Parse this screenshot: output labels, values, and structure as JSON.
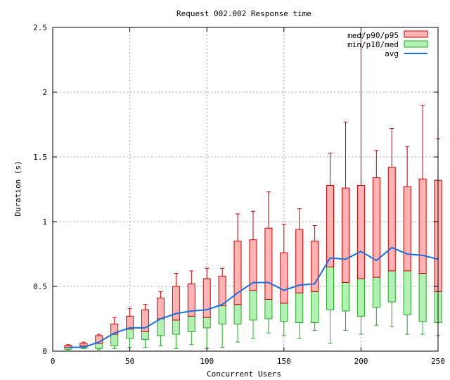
{
  "chart_data": {
    "type": "box",
    "title": "Request 002.002 Response time",
    "xlabel": "Concurrent Users",
    "ylabel": "Duration (s)",
    "xlim": [
      0,
      250
    ],
    "ylim": [
      0,
      2.5
    ],
    "xticks": [
      0,
      50,
      100,
      150,
      200,
      250
    ],
    "yticks": [
      0,
      0.5,
      1,
      1.5,
      2,
      2.5
    ],
    "ytick_labels": [
      "0",
      "0.5",
      "1",
      "1.5",
      "2",
      "2.5"
    ],
    "grid": true,
    "legend_position": "top-right",
    "legend": [
      {
        "label": "med/p90/p95",
        "color": "#ffb3b3",
        "stroke": "#cc0000"
      },
      {
        "label": "min/p10/med",
        "color": "#b3f0b3",
        "stroke": "#22aa22"
      },
      {
        "label": "avg",
        "color": "#1a6fe0"
      }
    ],
    "series": [
      {
        "x": 10,
        "min": 0.01,
        "p10": 0.015,
        "med": 0.03,
        "p90": 0.045,
        "p95": 0.05,
        "avg": 0.03
      },
      {
        "x": 20,
        "min": 0.02,
        "p10": 0.025,
        "med": 0.04,
        "p90": 0.06,
        "p95": 0.07,
        "avg": 0.03
      },
      {
        "x": 30,
        "min": 0.01,
        "p10": 0.02,
        "med": 0.06,
        "p90": 0.12,
        "p95": 0.13,
        "avg": 0.07
      },
      {
        "x": 40,
        "min": 0.02,
        "p10": 0.04,
        "med": 0.13,
        "p90": 0.21,
        "p95": 0.26,
        "avg": 0.14
      },
      {
        "x": 50,
        "min": 0.03,
        "p10": 0.1,
        "med": 0.17,
        "p90": 0.27,
        "p95": 0.33,
        "avg": 0.18
      },
      {
        "x": 60,
        "min": 0.03,
        "p10": 0.09,
        "med": 0.15,
        "p90": 0.32,
        "p95": 0.36,
        "avg": 0.18
      },
      {
        "x": 70,
        "min": 0.04,
        "p10": 0.12,
        "med": 0.25,
        "p90": 0.41,
        "p95": 0.46,
        "avg": 0.25
      },
      {
        "x": 80,
        "min": 0.02,
        "p10": 0.13,
        "med": 0.24,
        "p90": 0.5,
        "p95": 0.6,
        "avg": 0.29
      },
      {
        "x": 90,
        "min": 0.05,
        "p10": 0.15,
        "med": 0.27,
        "p90": 0.52,
        "p95": 0.62,
        "avg": 0.31
      },
      {
        "x": 100,
        "min": 0.02,
        "p10": 0.18,
        "med": 0.26,
        "p90": 0.56,
        "p95": 0.64,
        "avg": 0.32
      },
      {
        "x": 110,
        "min": 0.03,
        "p10": 0.21,
        "med": 0.35,
        "p90": 0.58,
        "p95": 0.64,
        "avg": 0.36
      },
      {
        "x": 120,
        "min": 0.07,
        "p10": 0.21,
        "med": 0.36,
        "p90": 0.85,
        "p95": 1.06,
        "avg": 0.45
      },
      {
        "x": 130,
        "min": 0.1,
        "p10": 0.24,
        "med": 0.47,
        "p90": 0.86,
        "p95": 1.08,
        "avg": 0.53
      },
      {
        "x": 140,
        "min": 0.14,
        "p10": 0.25,
        "med": 0.4,
        "p90": 0.95,
        "p95": 1.23,
        "avg": 0.53
      },
      {
        "x": 150,
        "min": 0.12,
        "p10": 0.23,
        "med": 0.37,
        "p90": 0.76,
        "p95": 0.98,
        "avg": 0.47
      },
      {
        "x": 160,
        "min": 0.1,
        "p10": 0.22,
        "med": 0.45,
        "p90": 0.94,
        "p95": 1.1,
        "avg": 0.51
      },
      {
        "x": 170,
        "min": 0.16,
        "p10": 0.22,
        "med": 0.46,
        "p90": 0.85,
        "p95": 0.97,
        "avg": 0.52
      },
      {
        "x": 180,
        "min": 0.06,
        "p10": 0.32,
        "med": 0.65,
        "p90": 1.28,
        "p95": 1.53,
        "avg": 0.72
      },
      {
        "x": 190,
        "min": 0.16,
        "p10": 0.31,
        "med": 0.53,
        "p90": 1.26,
        "p95": 1.77,
        "avg": 0.71
      },
      {
        "x": 200,
        "min": 0.13,
        "p10": 0.27,
        "med": 0.56,
        "p90": 1.28,
        "p95": 2.45,
        "avg": 0.77
      },
      {
        "x": 210,
        "min": 0.2,
        "p10": 0.34,
        "med": 0.57,
        "p90": 1.34,
        "p95": 1.55,
        "avg": 0.7
      },
      {
        "x": 220,
        "min": 0.19,
        "p10": 0.38,
        "med": 0.62,
        "p90": 1.42,
        "p95": 1.72,
        "avg": 0.8
      },
      {
        "x": 230,
        "min": 0.13,
        "p10": 0.28,
        "med": 0.62,
        "p90": 1.27,
        "p95": 1.58,
        "avg": 0.75
      },
      {
        "x": 240,
        "min": 0.13,
        "p10": 0.23,
        "med": 0.6,
        "p90": 1.33,
        "p95": 1.9,
        "avg": 0.74
      },
      {
        "x": 250,
        "min": 0.12,
        "p10": 0.22,
        "med": 0.46,
        "p90": 1.32,
        "p95": 1.64,
        "avg": 0.71
      }
    ]
  }
}
